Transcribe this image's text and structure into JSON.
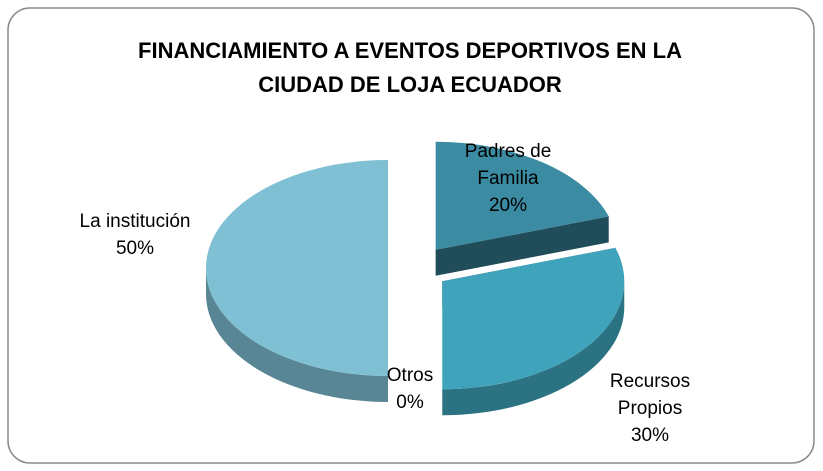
{
  "chart_data": {
    "type": "pie",
    "title": "FINANCIAMIENTO A EVENTOS DEPORTIVOS EN LA CIUDAD DE LOJA ECUADOR",
    "categories": [
      "Padres de Familia",
      "Recursos Propios",
      "Otros",
      "La institución"
    ],
    "values": [
      20,
      30,
      0,
      50
    ],
    "value_labels": [
      "20%",
      "30%",
      "0%",
      "50%"
    ],
    "colors": [
      "#3b8ca2",
      "#3ea3bb",
      "#2e6e80",
      "#7fc0d5"
    ]
  }
}
